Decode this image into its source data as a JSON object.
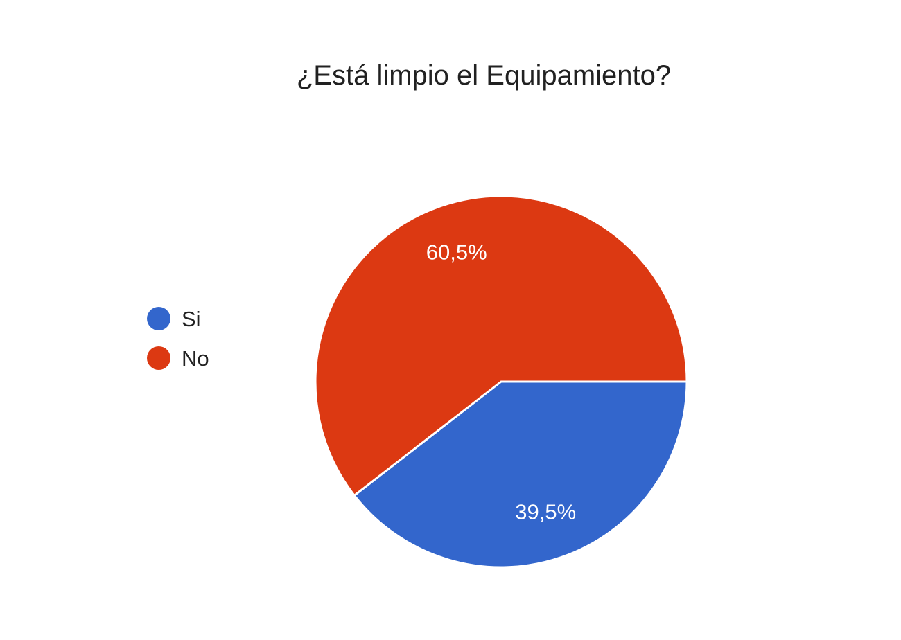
{
  "chart_data": {
    "type": "pie",
    "title": "¿Está limpio el Equipamiento?",
    "categories": [
      "Si",
      "No"
    ],
    "values": [
      39.5,
      60.5
    ],
    "data_labels": [
      "39,5%",
      "60,5%"
    ],
    "colors": [
      "#3366cc",
      "#dc3912"
    ],
    "legend_position": "left",
    "start_angle": "3 o'clock, clockwise"
  }
}
